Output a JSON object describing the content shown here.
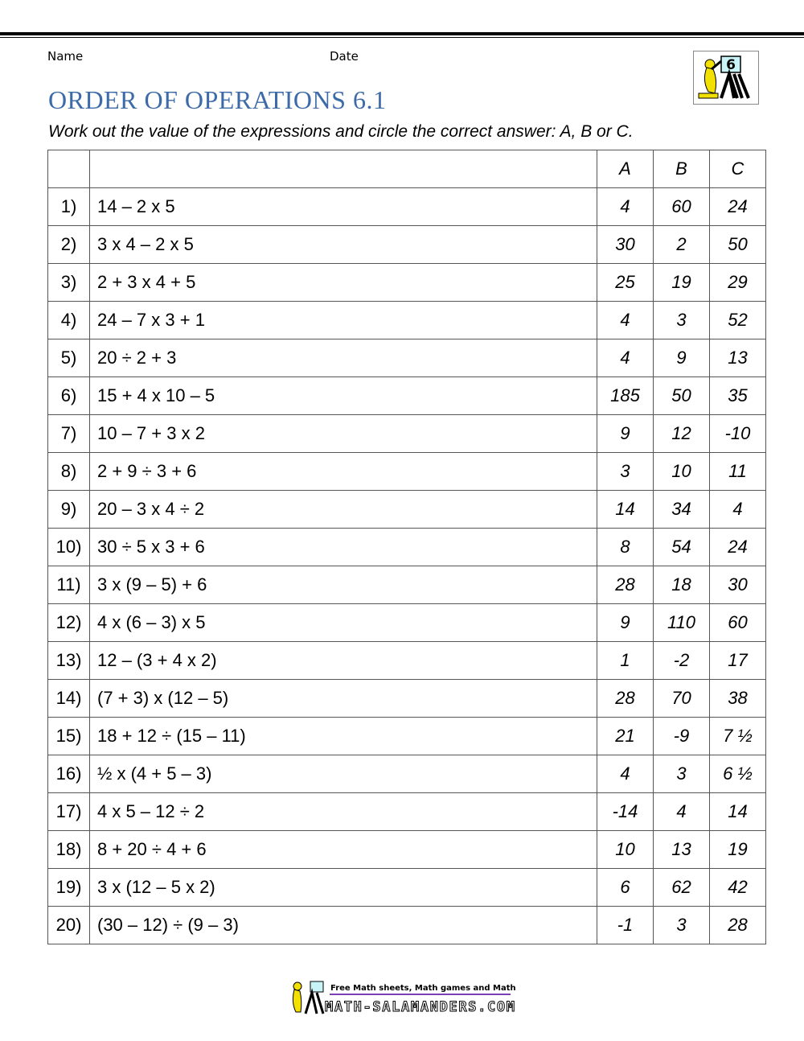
{
  "header": {
    "name_label": "Name",
    "date_label": "Date",
    "logo_grade": "6"
  },
  "title": "ORDER OF OPERATIONS 6.1",
  "instructions": "Work out the value of the expressions and circle the correct answer: A, B or C.",
  "table": {
    "columns": [
      "",
      "",
      "A",
      "B",
      "C"
    ],
    "rows": [
      {
        "n": "1)",
        "expr": "14 – 2 x 5",
        "a": "4",
        "b": "60",
        "c": "24"
      },
      {
        "n": "2)",
        "expr": "3 x 4 – 2 x 5",
        "a": "30",
        "b": "2",
        "c": "50"
      },
      {
        "n": "3)",
        "expr": "2 + 3 x 4 + 5",
        "a": "25",
        "b": "19",
        "c": "29"
      },
      {
        "n": "4)",
        "expr": "24 – 7 x 3 + 1",
        "a": "4",
        "b": "3",
        "c": "52"
      },
      {
        "n": "5)",
        "expr": "20 ÷ 2 + 3",
        "a": "4",
        "b": "9",
        "c": "13"
      },
      {
        "n": "6)",
        "expr": "15 + 4 x 10 – 5",
        "a": "185",
        "b": "50",
        "c": "35"
      },
      {
        "n": "7)",
        "expr": "10 – 7 + 3 x 2",
        "a": "9",
        "b": "12",
        "c": "-10"
      },
      {
        "n": "8)",
        "expr": "2 + 9 ÷ 3 + 6",
        "a": "3",
        "b": "10",
        "c": "11"
      },
      {
        "n": "9)",
        "expr": "20 – 3 x 4 ÷ 2",
        "a": "14",
        "b": "34",
        "c": "4"
      },
      {
        "n": "10)",
        "expr": "30 ÷ 5 x 3 + 6",
        "a": "8",
        "b": "54",
        "c": "24"
      },
      {
        "n": "11)",
        "expr": "3 x (9 – 5) + 6",
        "a": "28",
        "b": "18",
        "c": "30"
      },
      {
        "n": "12)",
        "expr": "4 x (6 – 3) x 5",
        "a": "9",
        "b": "110",
        "c": "60"
      },
      {
        "n": "13)",
        "expr": "12 – (3 + 4 x 2)",
        "a": "1",
        "b": "-2",
        "c": "17"
      },
      {
        "n": "14)",
        "expr": "(7 + 3) x (12 – 5)",
        "a": "28",
        "b": "70",
        "c": "38"
      },
      {
        "n": "15)",
        "expr": "18 + 12 ÷ (15 – 11)",
        "a": "21",
        "b": "-9",
        "c": "7 ½"
      },
      {
        "n": "16)",
        "expr": "½ x (4 + 5 – 3)",
        "a": "4",
        "b": "3",
        "c": "6 ½"
      },
      {
        "n": "17)",
        "expr": "4 x 5 – 12 ÷ 2",
        "a": "-14",
        "b": "4",
        "c": "14"
      },
      {
        "n": "18)",
        "expr": "8 + 20 ÷ 4 + 6",
        "a": "10",
        "b": "13",
        "c": "19"
      },
      {
        "n": "19)",
        "expr": "3 x (12 – 5 x 2)",
        "a": "6",
        "b": "62",
        "c": "42"
      },
      {
        "n": "20)",
        "expr": "(30 – 12) ÷ (9 – 3)",
        "a": "-1",
        "b": "3",
        "c": "28"
      }
    ]
  },
  "footer": {
    "tagline": "Free Math sheets, Math games and Math help",
    "site": "MATH-SALAMANDERS.COM",
    "divider_color": "#7b3fb5"
  },
  "colors": {
    "title": "#3d6aa8",
    "salamander": "#f2e000"
  }
}
